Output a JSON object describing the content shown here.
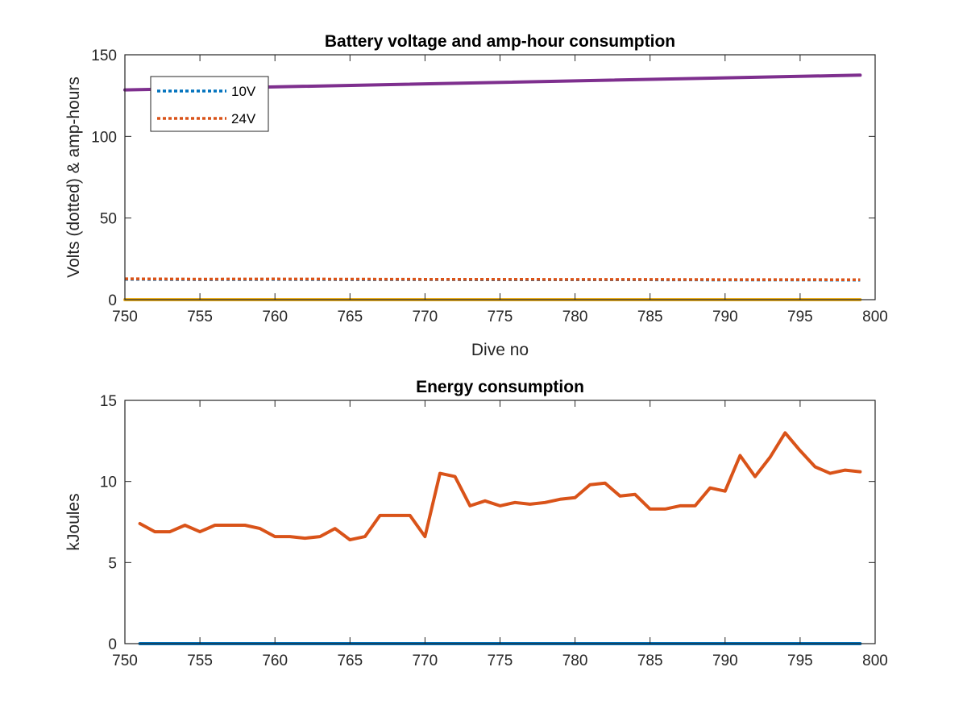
{
  "chart_data": [
    {
      "type": "line",
      "title": "Battery voltage and amp-hour consumption",
      "xlabel": "Dive no",
      "ylabel": "Volts (dotted) & amp-hours",
      "xlim": [
        750,
        800
      ],
      "ylim": [
        0,
        150
      ],
      "xticks": [
        750,
        755,
        760,
        765,
        770,
        775,
        780,
        785,
        790,
        795,
        800
      ],
      "yticks": [
        0,
        50,
        100,
        150
      ],
      "grid": false,
      "legend": {
        "placement": "top-left",
        "entries": [
          "10V",
          "24V"
        ]
      },
      "series": [
        {
          "name": "10V",
          "style": "dotted",
          "color": "#0072BD",
          "x": [
            750,
            755,
            760,
            765,
            770,
            775,
            780,
            785,
            790,
            795,
            799
          ],
          "y": [
            12.5,
            12.3,
            12.4,
            12.3,
            12.3,
            12.2,
            12.2,
            12.2,
            12.1,
            12.1,
            12.0
          ]
        },
        {
          "name": "24V",
          "style": "dotted",
          "color": "#D95319",
          "x": [
            750,
            755,
            760,
            765,
            770,
            775,
            780,
            785,
            790,
            795,
            799
          ],
          "y": [
            12.8,
            12.6,
            12.7,
            12.6,
            12.5,
            12.5,
            12.4,
            12.4,
            12.3,
            12.3,
            12.2
          ]
        },
        {
          "style": "solid",
          "color": "#EDB120",
          "x": [
            750,
            799
          ],
          "y": [
            0,
            0
          ]
        },
        {
          "style": "solid",
          "color": "#7E2F8E",
          "x": [
            750,
            799
          ],
          "y": [
            128.5,
            137.5
          ]
        }
      ]
    },
    {
      "type": "line",
      "title": "Energy consumption",
      "xlabel": "",
      "ylabel": "kJoules",
      "xlim": [
        750,
        800
      ],
      "ylim": [
        0,
        15
      ],
      "xticks": [
        750,
        755,
        760,
        765,
        770,
        775,
        780,
        785,
        790,
        795,
        800
      ],
      "yticks": [
        0,
        5,
        10,
        15
      ],
      "grid": false,
      "series": [
        {
          "style": "solid",
          "color": "#0072BD",
          "x": [
            751,
            799
          ],
          "y": [
            0,
            0
          ]
        },
        {
          "style": "solid",
          "color": "#D95319",
          "x": [
            751,
            752,
            753,
            754,
            755,
            756,
            757,
            758,
            759,
            760,
            761,
            762,
            763,
            764,
            765,
            766,
            767,
            768,
            769,
            770,
            771,
            772,
            773,
            774,
            775,
            776,
            777,
            778,
            779,
            780,
            781,
            782,
            783,
            784,
            785,
            786,
            787,
            788,
            789,
            790,
            791,
            792,
            793,
            794,
            795,
            796,
            797,
            798,
            799
          ],
          "y": [
            7.4,
            6.9,
            6.9,
            7.3,
            6.9,
            7.3,
            7.3,
            7.3,
            7.1,
            6.6,
            6.6,
            6.5,
            6.6,
            7.1,
            6.4,
            6.6,
            7.9,
            7.9,
            7.9,
            6.6,
            10.5,
            10.3,
            8.5,
            8.8,
            8.5,
            8.7,
            8.6,
            8.7,
            8.9,
            9.0,
            9.8,
            9.9,
            9.1,
            9.2,
            8.3,
            8.3,
            8.5,
            8.5,
            9.6,
            9.4,
            11.6,
            10.3,
            11.5,
            13.0,
            11.9,
            10.9,
            10.5,
            10.7,
            10.6
          ]
        }
      ]
    }
  ]
}
